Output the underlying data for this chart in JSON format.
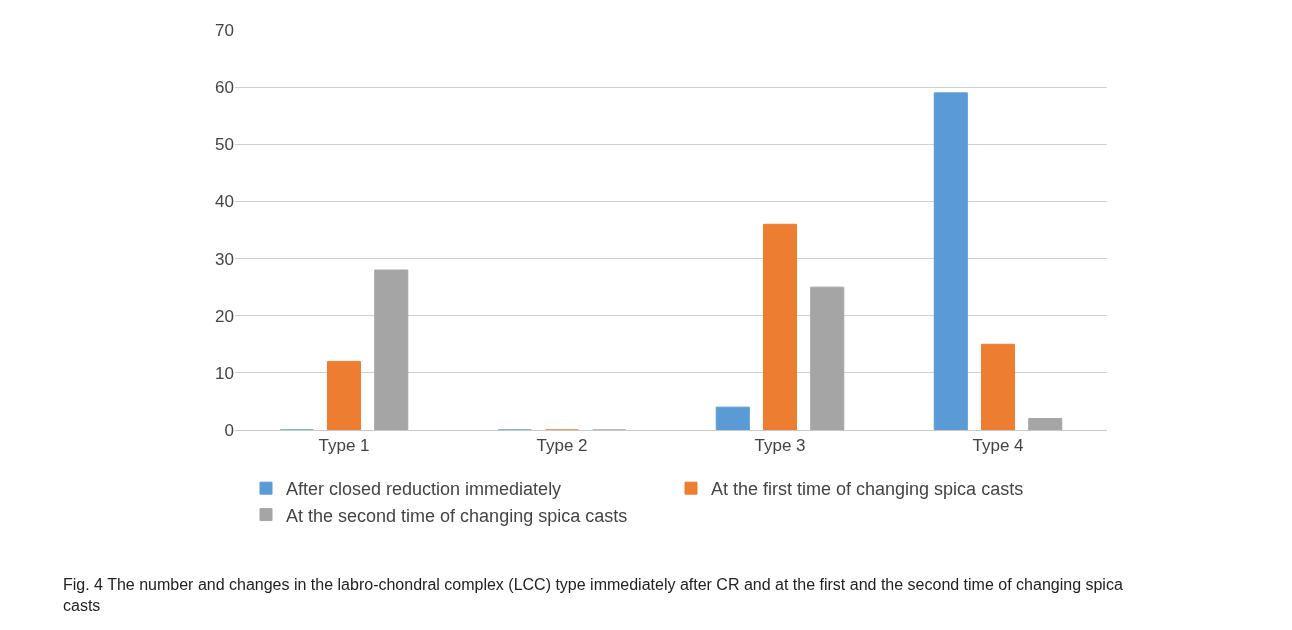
{
  "chart_data": {
    "type": "bar",
    "categories": [
      "Type 1",
      "Type 2",
      "Type 3",
      "Type 4"
    ],
    "series": [
      {
        "name": "After closed reduction immediately",
        "color": "#5b9bd5",
        "values": [
          0,
          0,
          4,
          59
        ]
      },
      {
        "name": "At the first time of changing spica casts",
        "color": "#ed7d31",
        "values": [
          12,
          0,
          36,
          15
        ]
      },
      {
        "name": "At the second time of changing spica casts",
        "color": "#a5a5a5",
        "values": [
          28,
          0,
          25,
          2
        ]
      }
    ],
    "ylim": [
      0,
      70
    ],
    "yticks": [
      0,
      10,
      20,
      30,
      40,
      50,
      60,
      70
    ],
    "grid": "y",
    "legend": "bottom",
    "annotations": [
      "Fig. 4 The number and changes in the labro-chondral complex (LCC) type immediately after CR and at the first and the second time of changing spica casts"
    ]
  }
}
